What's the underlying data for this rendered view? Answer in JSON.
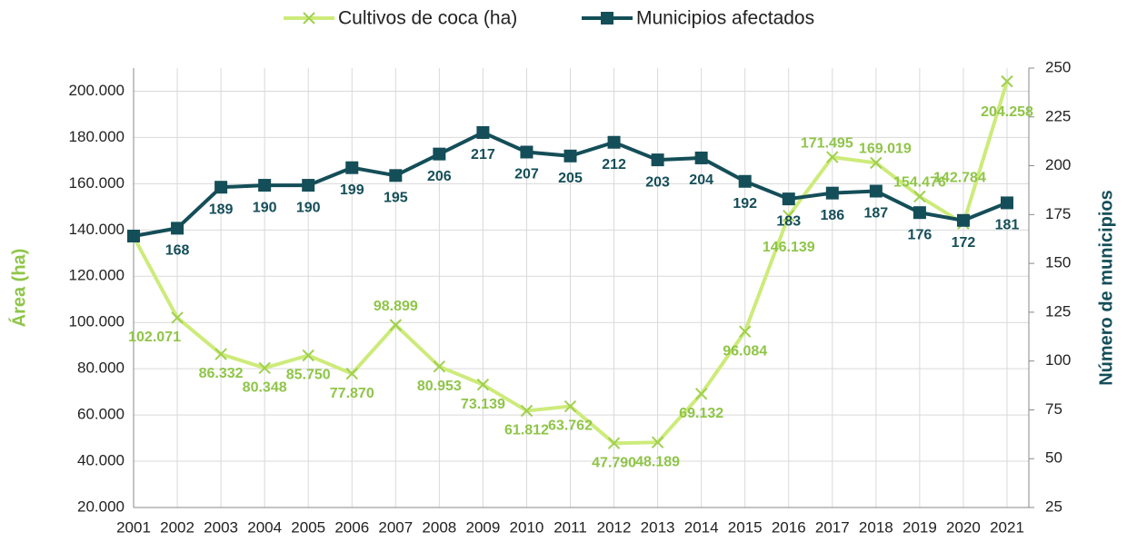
{
  "chart_data": {
    "type": "line",
    "categories": [
      "2001",
      "2002",
      "2003",
      "2004",
      "2005",
      "2006",
      "2007",
      "2008",
      "2009",
      "2010",
      "2011",
      "2012",
      "2013",
      "2014",
      "2015",
      "2016",
      "2017",
      "2018",
      "2019",
      "2020",
      "2021"
    ],
    "series": [
      {
        "name": "Cultivos de coca (ha)",
        "color": "#cdeb7a",
        "label_color": "#8fc548",
        "marker": "x",
        "values": [
          137000,
          102071,
          86332,
          80348,
          85750,
          77870,
          98899,
          80953,
          73139,
          61812,
          63762,
          47790,
          48189,
          69132,
          96084,
          146139,
          171495,
          169019,
          154476,
          142784,
          204258
        ],
        "value_labels": [
          null,
          "102.071",
          "86.332",
          "80.348",
          "85.750",
          "77.870",
          "98.899",
          "80.953",
          "73.139",
          "61.812",
          "63.762",
          "47.790",
          "48.189",
          "69.132",
          "96.084",
          "146.139",
          "171.495",
          "169.019",
          "154.476",
          "142.784",
          "204.258"
        ]
      },
      {
        "name": "Municipios afectados",
        "color": "#144e58",
        "label_color": "#144e58",
        "marker": "square",
        "axis": "y2",
        "values": [
          164,
          168,
          189,
          190,
          190,
          199,
          195,
          206,
          217,
          207,
          205,
          212,
          203,
          204,
          192,
          183,
          186,
          187,
          176,
          172,
          181
        ]
      }
    ],
    "ylabel": "Área (ha)",
    "y2label": "Número de municipios",
    "ylim": [
      20000,
      210000
    ],
    "yticks": [
      {
        "value": 20000,
        "label": "20.000"
      },
      {
        "value": 40000,
        "label": "40.000"
      },
      {
        "value": 60000,
        "label": "60.000"
      },
      {
        "value": 80000,
        "label": "80.000"
      },
      {
        "value": 100000,
        "label": "100.000"
      },
      {
        "value": 120000,
        "label": "120.000"
      },
      {
        "value": 140000,
        "label": "140.000"
      },
      {
        "value": 160000,
        "label": "160.000"
      },
      {
        "value": 180000,
        "label": "180.000"
      },
      {
        "value": 200000,
        "label": "200.000"
      }
    ],
    "y2lim": [
      25,
      250
    ],
    "y2ticks": [
      25,
      50,
      75,
      100,
      125,
      150,
      175,
      200,
      225,
      250
    ],
    "grid": true
  }
}
